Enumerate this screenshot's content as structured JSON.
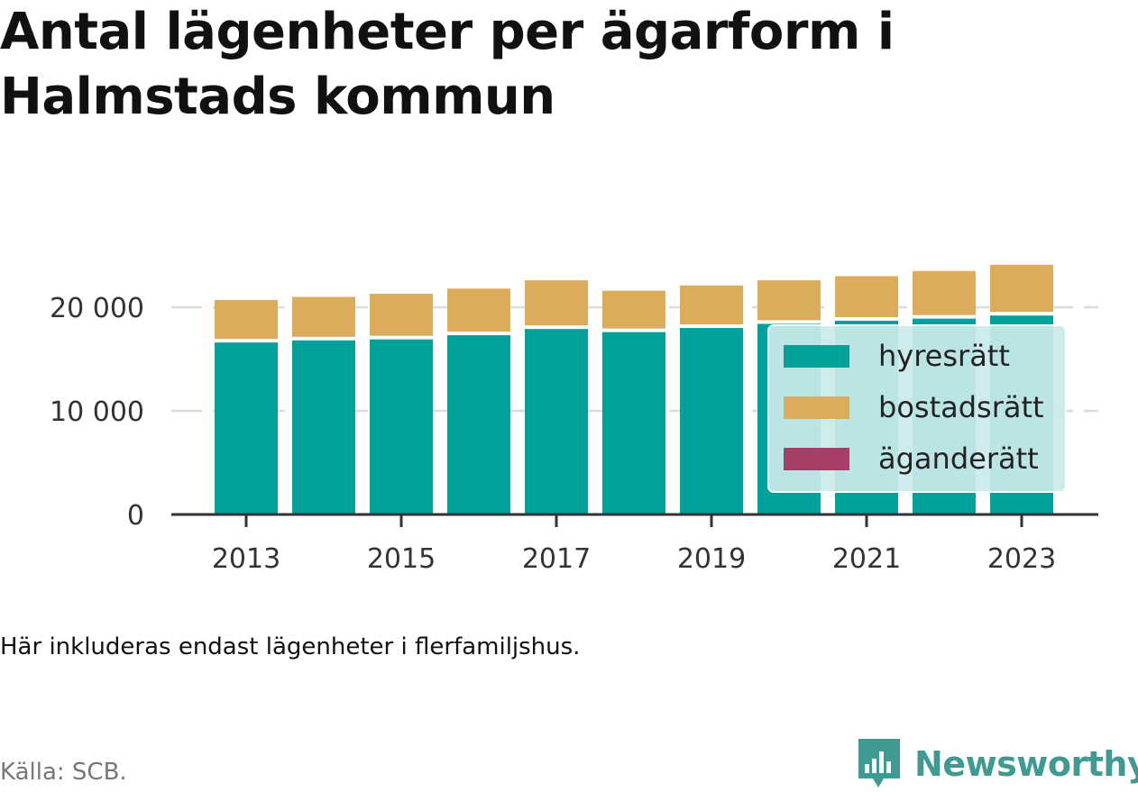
{
  "title": "Antal lägenheter per ägarform i Halmstads kommun",
  "note": "Här inkluderas endast lägenheter i flerfamiljshus.",
  "source": "Källa: SCB.",
  "brand": {
    "name": "Newsworthy",
    "icon": "newsworthy-logo-icon"
  },
  "colors": {
    "hyresratt": "#00a19a",
    "bostadsratt": "#dbac59",
    "aganderatt": "#a63f67",
    "grid": "#dddddd",
    "axis": "#333333",
    "legend_bg": "#cbeaea"
  },
  "chart_data": {
    "type": "bar",
    "stacked": true,
    "categories": [
      "2013",
      "2014",
      "2015",
      "2016",
      "2017",
      "2018",
      "2019",
      "2020",
      "2021",
      "2022",
      "2023"
    ],
    "x_tick_labels": [
      "2013",
      "2015",
      "2017",
      "2019",
      "2021",
      "2023"
    ],
    "series": [
      {
        "name": "hyresrätt",
        "color": "#00a19a",
        "values": [
          16600,
          16800,
          16900,
          17300,
          17900,
          17600,
          18000,
          18400,
          18700,
          18900,
          19200
        ]
      },
      {
        "name": "bostadsrätt",
        "color": "#dbac59",
        "values": [
          4100,
          4200,
          4400,
          4500,
          4700,
          4000,
          4100,
          4200,
          4300,
          4600,
          4900
        ]
      },
      {
        "name": "äganderätt",
        "color": "#a63f67",
        "values": [
          0,
          0,
          0,
          0,
          0,
          0,
          0,
          0,
          0,
          0,
          0
        ]
      }
    ],
    "y_ticks": [
      {
        "value": 0,
        "label": "0"
      },
      {
        "value": 10000,
        "label": "10 000"
      },
      {
        "value": 20000,
        "label": "20 000"
      }
    ],
    "ylim": [
      0,
      24500
    ],
    "grid": true,
    "legend_position": "bottom-right inside"
  }
}
